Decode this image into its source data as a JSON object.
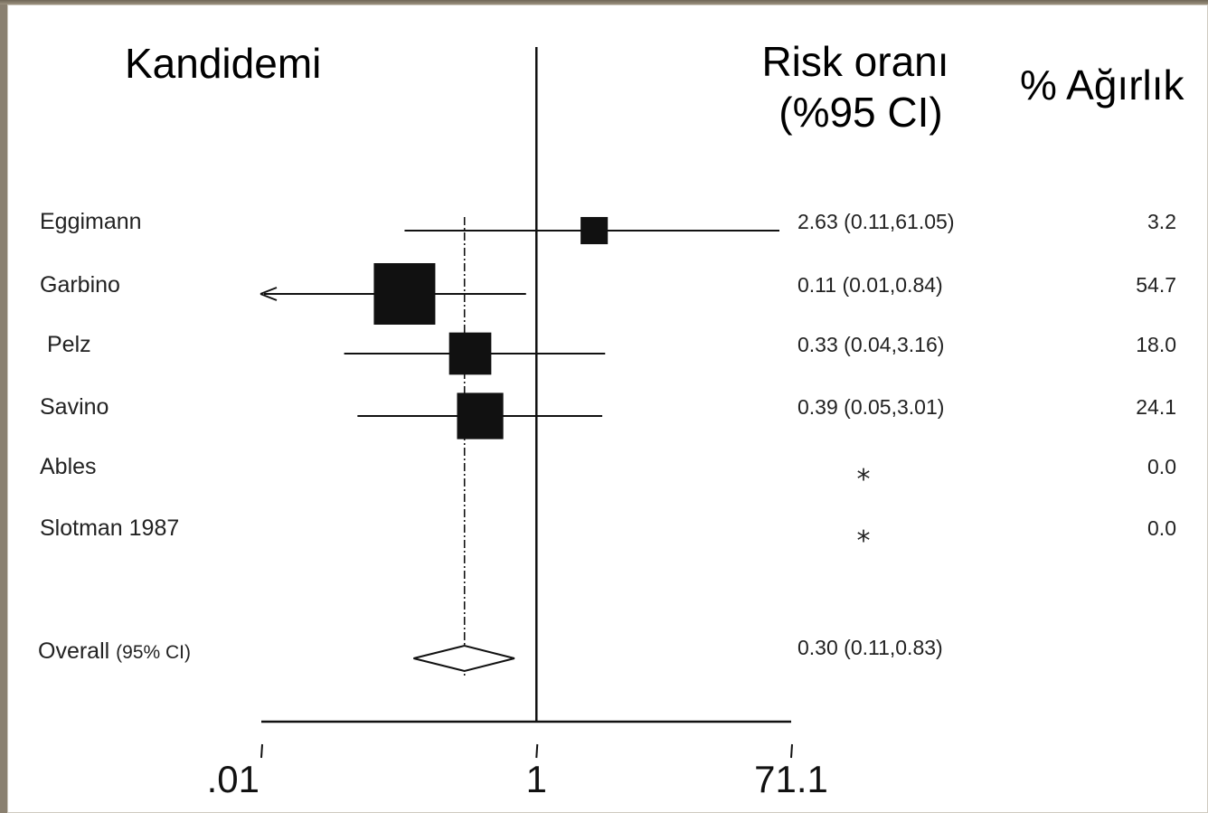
{
  "chart_data": {
    "type": "forest",
    "title": "Kandidemi",
    "column_headers": {
      "ratio_line1": "Risk oranı",
      "ratio_line2": "(%95 CI)",
      "weight": "% Ağırlık"
    },
    "x_scale": "log",
    "xlim": [
      0.01,
      71.1
    ],
    "x_ticks": [
      ".01",
      "1",
      "71.1"
    ],
    "reference_line": 1,
    "studies": [
      {
        "name": "Eggimann",
        "rr": 2.63,
        "lo": 0.11,
        "hi": 61.05,
        "ci_text": "2.63 (0.11,61.05)",
        "weight": 3.2,
        "weight_text": "3.2"
      },
      {
        "name": "Garbino",
        "rr": 0.11,
        "lo": 0.01,
        "hi": 0.84,
        "ci_text": "0.11 (0.01,0.84)",
        "weight": 54.7,
        "weight_text": "54.7",
        "arrow_left": true
      },
      {
        "name": "Pelz",
        "rr": 0.33,
        "lo": 0.04,
        "hi": 3.16,
        "ci_text": "0.33 (0.04,3.16)",
        "weight": 18.0,
        "weight_text": "18.0"
      },
      {
        "name": "Savino",
        "rr": 0.39,
        "lo": 0.05,
        "hi": 3.01,
        "ci_text": "0.39 (0.05,3.01)",
        "weight": 24.1,
        "weight_text": "24.1"
      },
      {
        "name": "Ables",
        "rr": null,
        "lo": null,
        "hi": null,
        "ci_text": "*",
        "weight": 0.0,
        "weight_text": "0.0"
      },
      {
        "name": "Slotman 1987",
        "rr": null,
        "lo": null,
        "hi": null,
        "ci_text": "*",
        "weight": 0.0,
        "weight_text": "0.0"
      }
    ],
    "overall": {
      "label": "Overall",
      "label_suffix": "(95% CI)",
      "rr": 0.3,
      "lo": 0.11,
      "hi": 0.83,
      "ci_text": "0.30 (0.11,0.83)"
    }
  }
}
